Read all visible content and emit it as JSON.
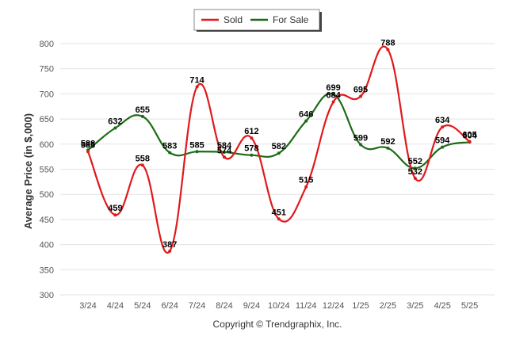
{
  "chart_data": {
    "type": "line",
    "categories": [
      "3/24",
      "4/24",
      "5/24",
      "6/24",
      "7/24",
      "8/24",
      "9/24",
      "10/24",
      "11/24",
      "12/24",
      "1/25",
      "2/25",
      "3/25",
      "4/25",
      "5/25"
    ],
    "series": [
      {
        "name": "Sold",
        "color": "#e0191b",
        "values": [
          585,
          459,
          558,
          387,
          714,
          574,
          612,
          451,
          515,
          684,
          695,
          788,
          532,
          634,
          605
        ]
      },
      {
        "name": "For Sale",
        "color": "#1a6b14",
        "values": [
          588,
          632,
          655,
          583,
          585,
          584,
          578,
          582,
          646,
          699,
          599,
          592,
          552,
          594,
          604
        ]
      }
    ],
    "ylabel": "Average Price (in $,000)",
    "xlabel": "",
    "ylim": [
      300,
      800
    ],
    "yticks": [
      300,
      350,
      400,
      450,
      500,
      550,
      600,
      650,
      700,
      750,
      800
    ],
    "grid": true,
    "legend": "top-center"
  },
  "footer": "Copyright © Trendgraphix, Inc."
}
